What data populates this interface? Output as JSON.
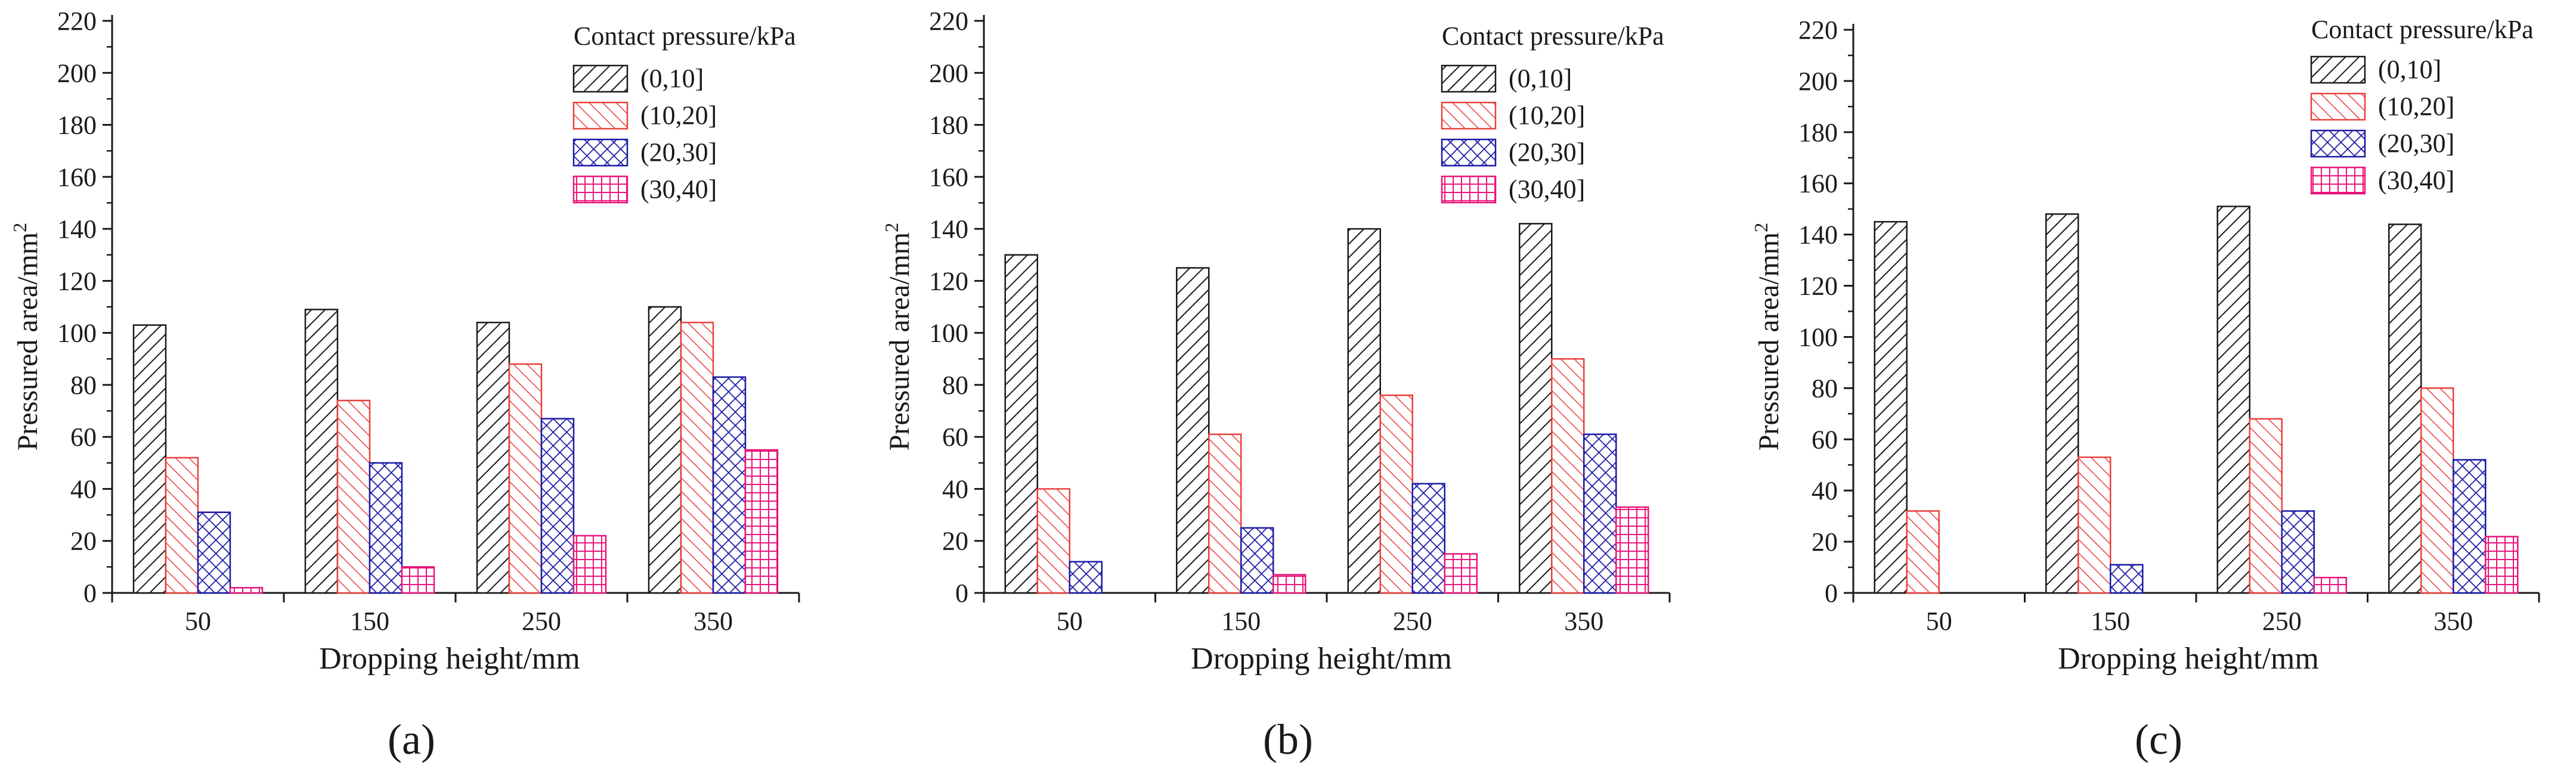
{
  "colors": {
    "series": [
      "#1a1a1a",
      "#e8403c",
      "#1a1aa6",
      "#e8157a"
    ],
    "axis": "#1a1a1a"
  },
  "chart_data": [
    {
      "type": "bar",
      "panel_label": "(a)",
      "categories": [
        "50",
        "150",
        "250",
        "350"
      ],
      "xlabel": "Dropping height/mm",
      "ylabel": "Pressured area/mm",
      "ylabel_sup": "2",
      "ylim": [
        0,
        220
      ],
      "yticks": [
        0,
        20,
        40,
        60,
        80,
        100,
        120,
        140,
        160,
        180,
        200,
        220
      ],
      "legend_title": "Contact pressure/kPa",
      "series": [
        {
          "name": "(0,10]",
          "values": [
            103,
            109,
            104,
            110
          ]
        },
        {
          "name": "(10,20]",
          "values": [
            52,
            74,
            88,
            104
          ]
        },
        {
          "name": "(20,30]",
          "values": [
            31,
            50,
            67,
            83
          ]
        },
        {
          "name": "(30,40]",
          "values": [
            2,
            10,
            22,
            55
          ]
        }
      ]
    },
    {
      "type": "bar",
      "panel_label": "(b)",
      "categories": [
        "50",
        "150",
        "250",
        "350"
      ],
      "xlabel": "Dropping height/mm",
      "ylabel": "Pressured area/mm",
      "ylabel_sup": "2",
      "ylim": [
        0,
        220
      ],
      "yticks": [
        0,
        20,
        40,
        60,
        80,
        100,
        120,
        140,
        160,
        180,
        200,
        220
      ],
      "legend_title": "Contact pressure/kPa",
      "series": [
        {
          "name": "(0,10]",
          "values": [
            130,
            125,
            140,
            142
          ]
        },
        {
          "name": "(10,20]",
          "values": [
            40,
            61,
            76,
            90
          ]
        },
        {
          "name": "(20,30]",
          "values": [
            12,
            25,
            42,
            61
          ]
        },
        {
          "name": "(30,40]",
          "values": [
            0,
            7,
            15,
            33
          ]
        }
      ]
    },
    {
      "type": "bar",
      "panel_label": "(c)",
      "categories": [
        "50",
        "150",
        "250",
        "350"
      ],
      "xlabel": "Dropping height/mm",
      "ylabel": "Pressured area/mm",
      "ylabel_sup": "2",
      "ylim": [
        0,
        220
      ],
      "yticks": [
        0,
        20,
        40,
        60,
        80,
        100,
        120,
        140,
        160,
        180,
        200,
        220
      ],
      "legend_title": "Contact pressure/kPa",
      "series": [
        {
          "name": "(0,10]",
          "values": [
            145,
            148,
            151,
            144
          ]
        },
        {
          "name": "(10,20]",
          "values": [
            32,
            53,
            68,
            80
          ]
        },
        {
          "name": "(20,30]",
          "values": [
            0,
            11,
            32,
            52
          ]
        },
        {
          "name": "(30,40]",
          "values": [
            0,
            0,
            6,
            22
          ]
        }
      ]
    }
  ]
}
